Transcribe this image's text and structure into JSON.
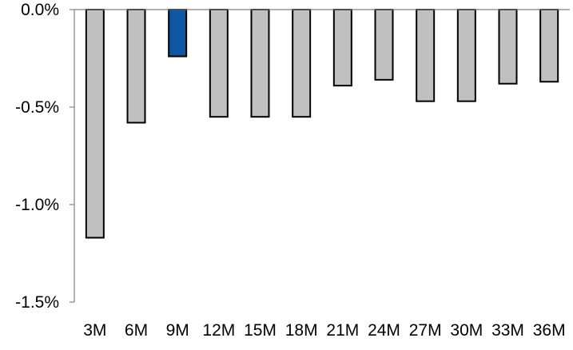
{
  "chart_data": {
    "type": "bar",
    "categories": [
      "3M",
      "6M",
      "9M",
      "12M",
      "15M",
      "18M",
      "21M",
      "24M",
      "27M",
      "30M",
      "33M",
      "36M"
    ],
    "values": [
      -1.17,
      -0.58,
      -0.24,
      -0.55,
      -0.55,
      -0.55,
      -0.39,
      -0.36,
      -0.47,
      -0.47,
      -0.38,
      -0.37
    ],
    "highlight_index": 2,
    "colors": {
      "default": "#c0c0c0",
      "highlight": "#0f56a3",
      "outline": "#000000"
    },
    "ylim": [
      -1.5,
      0
    ],
    "yticks": [
      0,
      -0.5,
      -1.0,
      -1.5
    ],
    "ytick_labels": [
      "0.0%",
      "-0.5%",
      "-1.0%",
      "-1.5%"
    ],
    "grid": false,
    "legend": false,
    "title": "",
    "xlabel": "",
    "ylabel": ""
  }
}
